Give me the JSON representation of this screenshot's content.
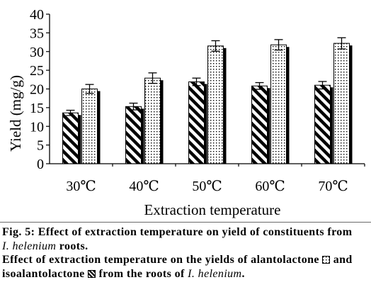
{
  "chart_data": {
    "type": "bar",
    "categories": [
      "30℃",
      "40℃",
      "50℃",
      "60℃",
      "70℃"
    ],
    "series": [
      {
        "name": "isoalantolactone",
        "pattern": "diagonal-hatch",
        "values": [
          13.6,
          15.3,
          21.9,
          20.8,
          21.0
        ],
        "errors": [
          0.7,
          0.9,
          1.0,
          0.9,
          1.0
        ]
      },
      {
        "name": "alantolactone",
        "pattern": "dotted",
        "values": [
          20.0,
          22.9,
          31.5,
          31.8,
          32.2
        ],
        "errors": [
          1.2,
          1.4,
          1.4,
          1.4,
          1.5
        ]
      }
    ],
    "xlabel": "Extraction temperature",
    "ylabel": "Yield (mg/g)",
    "ylim": [
      0,
      40
    ],
    "yticks": [
      0,
      5,
      10,
      15,
      20,
      25,
      30,
      35,
      40
    ],
    "error_bars": true,
    "grid": false,
    "legend": "caption"
  },
  "caption": {
    "figure_label": "Fig. 5:",
    "title_line_1": "Effect of extraction temperature on yield of constituents from",
    "species": "I. helenium",
    "title_line_2_tail": "roots.",
    "note_line_3_head": "Effect of extraction temperature on the yields of",
    "note_line_3_tail": "and",
    "note_line_4_middle": "from the roots of",
    "note_line_4_end": "."
  }
}
